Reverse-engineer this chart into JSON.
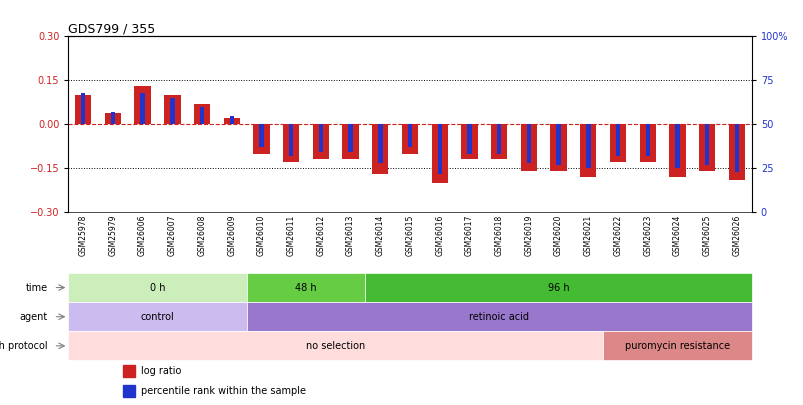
{
  "title": "GDS799 / 355",
  "samples": [
    "GSM25978",
    "GSM25979",
    "GSM26006",
    "GSM26007",
    "GSM26008",
    "GSM26009",
    "GSM26010",
    "GSM26011",
    "GSM26012",
    "GSM26013",
    "GSM26014",
    "GSM26015",
    "GSM26016",
    "GSM26017",
    "GSM26018",
    "GSM26019",
    "GSM26020",
    "GSM26021",
    "GSM26022",
    "GSM26023",
    "GSM26024",
    "GSM26025",
    "GSM26026"
  ],
  "log_ratio": [
    0.1,
    0.04,
    0.13,
    0.1,
    0.07,
    0.02,
    -0.1,
    -0.13,
    -0.12,
    -0.12,
    -0.17,
    -0.1,
    -0.2,
    -0.12,
    -0.12,
    -0.16,
    -0.16,
    -0.18,
    -0.13,
    -0.13,
    -0.18,
    -0.16,
    -0.19
  ],
  "percentile_rank": [
    68,
    57,
    68,
    65,
    60,
    55,
    37,
    32,
    34,
    34,
    28,
    37,
    22,
    33,
    33,
    28,
    27,
    25,
    32,
    32,
    25,
    27,
    23
  ],
  "ylim_left": [
    -0.3,
    0.3
  ],
  "ylim_right": [
    0,
    100
  ],
  "yticks_left": [
    -0.3,
    -0.15,
    0,
    0.15,
    0.3
  ],
  "yticks_right": [
    0,
    25,
    50,
    75,
    100
  ],
  "bar_color_red": "#cc2222",
  "bar_color_blue": "#2233cc",
  "background_color": "#ffffff",
  "time_groups": [
    {
      "label": "0 h",
      "start": 0,
      "end": 6,
      "color": "#cceebb"
    },
    {
      "label": "48 h",
      "start": 6,
      "end": 10,
      "color": "#66cc44"
    },
    {
      "label": "96 h",
      "start": 10,
      "end": 23,
      "color": "#44bb33"
    }
  ],
  "agent_groups": [
    {
      "label": "control",
      "start": 0,
      "end": 6,
      "color": "#ccbbee"
    },
    {
      "label": "retinoic acid",
      "start": 6,
      "end": 23,
      "color": "#9977cc"
    }
  ],
  "growth_groups": [
    {
      "label": "no selection",
      "start": 0,
      "end": 18,
      "color": "#ffdddd"
    },
    {
      "label": "puromycin resistance",
      "start": 18,
      "end": 23,
      "color": "#dd8888"
    }
  ],
  "legend_red": "log ratio",
  "legend_blue": "percentile rank within the sample"
}
